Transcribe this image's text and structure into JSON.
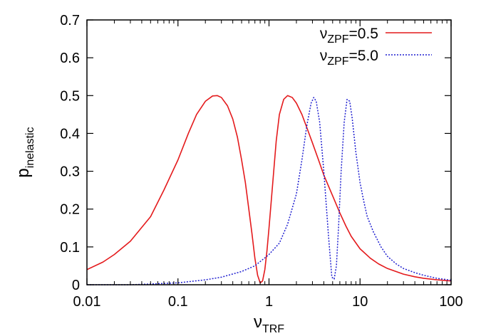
{
  "chart_data": {
    "type": "line",
    "xscale": "log",
    "xlim": [
      0.01,
      100
    ],
    "ylim": [
      0,
      0.7
    ],
    "xticks": [
      {
        "value": 0.01,
        "label": "0.01"
      },
      {
        "value": 0.1,
        "label": "0.1"
      },
      {
        "value": 1,
        "label": "1"
      },
      {
        "value": 10,
        "label": "10"
      },
      {
        "value": 100,
        "label": "100"
      }
    ],
    "yticks": [
      {
        "value": 0,
        "label": "0"
      },
      {
        "value": 0.1,
        "label": "0.1"
      },
      {
        "value": 0.2,
        "label": "0.2"
      },
      {
        "value": 0.3,
        "label": "0.3"
      },
      {
        "value": 0.4,
        "label": "0.4"
      },
      {
        "value": 0.5,
        "label": "0.5"
      },
      {
        "value": 0.6,
        "label": "0.6"
      },
      {
        "value": 0.7,
        "label": "0.7"
      }
    ],
    "xlabel": {
      "base": "ν",
      "sub": "TRF"
    },
    "ylabel": {
      "base": "p",
      "sub": "inelastic"
    },
    "grid": false,
    "legend_position": "top-right",
    "series": [
      {
        "name": "νZPF=0.5",
        "legend": {
          "base": "ν",
          "sub": "ZPF",
          "suffix": "=0.5"
        },
        "color": "#e41a1c",
        "style": "solid",
        "x": [
          0.01,
          0.015,
          0.02,
          0.03,
          0.05,
          0.07,
          0.1,
          0.13,
          0.16,
          0.2,
          0.24,
          0.27,
          0.3,
          0.35,
          0.4,
          0.45,
          0.5,
          0.55,
          0.6,
          0.65,
          0.7,
          0.75,
          0.8,
          0.85,
          0.9,
          0.95,
          1.0,
          1.1,
          1.2,
          1.3,
          1.45,
          1.6,
          1.8,
          2.0,
          2.3,
          2.7,
          3.0,
          3.5,
          4.0,
          5.0,
          6.0,
          7.0,
          8.0,
          10,
          13,
          16,
          20,
          30,
          40,
          50,
          70,
          100
        ],
        "y": [
          0.04,
          0.06,
          0.08,
          0.115,
          0.18,
          0.25,
          0.33,
          0.4,
          0.45,
          0.485,
          0.499,
          0.5,
          0.495,
          0.473,
          0.438,
          0.39,
          0.33,
          0.27,
          0.2,
          0.135,
          0.07,
          0.025,
          0.005,
          0.01,
          0.04,
          0.09,
          0.15,
          0.27,
          0.38,
          0.45,
          0.49,
          0.5,
          0.495,
          0.48,
          0.45,
          0.405,
          0.375,
          0.33,
          0.29,
          0.235,
          0.19,
          0.155,
          0.128,
          0.095,
          0.07,
          0.055,
          0.043,
          0.028,
          0.021,
          0.017,
          0.013,
          0.01
        ]
      },
      {
        "name": "νZPF=5.0",
        "legend": {
          "base": "ν",
          "sub": "ZPF",
          "suffix": "=5.0"
        },
        "color": "#1f1fd0",
        "style": "dotted",
        "x": [
          0.01,
          0.03,
          0.05,
          0.1,
          0.2,
          0.3,
          0.5,
          0.7,
          1.0,
          1.3,
          1.6,
          2.0,
          2.3,
          2.6,
          2.9,
          3.1,
          3.3,
          3.6,
          4.0,
          4.5,
          4.9,
          5.2,
          5.5,
          5.8,
          6.2,
          6.7,
          7.2,
          7.7,
          8.2,
          9.0,
          10,
          11,
          12,
          14,
          17,
          20,
          25,
          30,
          40,
          50,
          70,
          100
        ],
        "y": [
          0.0,
          0.0,
          0.002,
          0.005,
          0.013,
          0.02,
          0.035,
          0.05,
          0.08,
          0.11,
          0.16,
          0.24,
          0.33,
          0.42,
          0.48,
          0.495,
          0.485,
          0.43,
          0.3,
          0.13,
          0.02,
          0.015,
          0.05,
          0.15,
          0.3,
          0.43,
          0.49,
          0.485,
          0.44,
          0.35,
          0.27,
          0.22,
          0.18,
          0.14,
          0.1,
          0.075,
          0.055,
          0.043,
          0.032,
          0.025,
          0.017,
          0.012
        ]
      }
    ]
  }
}
